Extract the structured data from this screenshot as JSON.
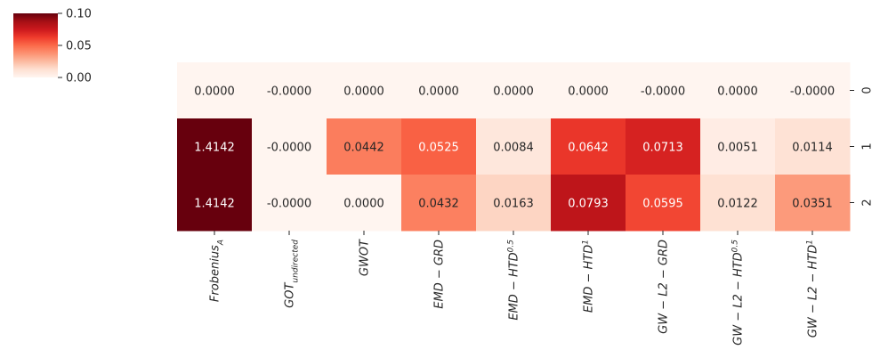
{
  "chart_data": {
    "type": "heatmap",
    "colormap": "Reds",
    "vmin": 0.0,
    "vmax": 0.1,
    "colorbar_ticks": [
      "0.10",
      "0.05",
      "0.00"
    ],
    "rows": [
      "0",
      "1",
      "2"
    ],
    "columns": [
      {
        "base": "Frobenius",
        "sub": "A",
        "sup": ""
      },
      {
        "base": "GOT",
        "sub": "undirected",
        "sup": ""
      },
      {
        "base": "GWOT",
        "sub": "",
        "sup": ""
      },
      {
        "base": "EMD − GRD",
        "sub": "",
        "sup": ""
      },
      {
        "base": "EMD − HTD",
        "sub": "",
        "sup": "0.5"
      },
      {
        "base": "EMD − HTD",
        "sub": "",
        "sup": "1"
      },
      {
        "base": "GW − L2 − GRD",
        "sub": "",
        "sup": ""
      },
      {
        "base": "GW − L2 − HTD",
        "sub": "",
        "sup": "0.5"
      },
      {
        "base": "GW − L2 − HTD",
        "sub": "",
        "sup": "1"
      }
    ],
    "values": [
      [
        0.0,
        0.0,
        0.0,
        0.0,
        0.0,
        0.0,
        0.0,
        0.0,
        0.0
      ],
      [
        1.4142,
        0.0,
        0.0442,
        0.0525,
        0.0084,
        0.0642,
        0.0713,
        0.0051,
        0.0114
      ],
      [
        1.4142,
        0.0,
        0.0,
        0.0432,
        0.0163,
        0.0793,
        0.0595,
        0.0122,
        0.0351
      ]
    ],
    "labels": [
      [
        "0.0000",
        "-0.0000",
        "0.0000",
        "0.0000",
        "0.0000",
        "0.0000",
        "-0.0000",
        "0.0000",
        "-0.0000"
      ],
      [
        "1.4142",
        "-0.0000",
        "0.0442",
        "0.0525",
        "0.0084",
        "0.0642",
        "0.0713",
        "0.0051",
        "0.0114"
      ],
      [
        "1.4142",
        "-0.0000",
        "0.0000",
        "0.0432",
        "0.0163",
        "0.0793",
        "0.0595",
        "0.0122",
        "0.0351"
      ]
    ]
  }
}
